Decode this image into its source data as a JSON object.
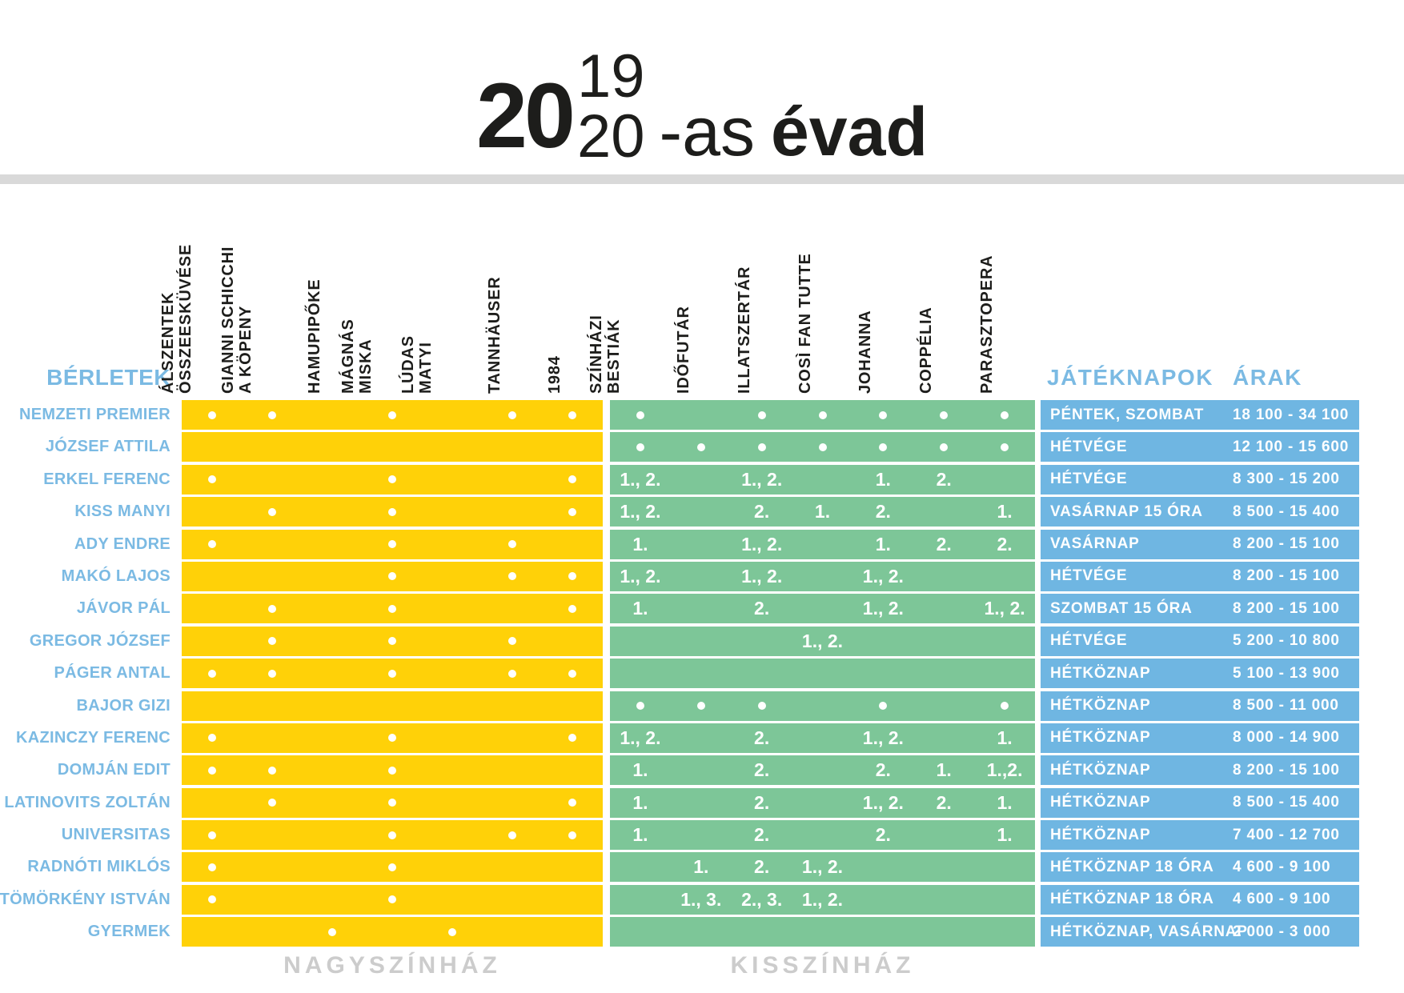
{
  "title": {
    "year_big": "20",
    "year_top": "19",
    "year_bottom": "20",
    "suffix": "-as",
    "season_word": "évad"
  },
  "berletek_label": "BÉRLETEK",
  "jateknapok_label": "JÁTÉKNAPOK",
  "arak_label": "ÁRAK",
  "colors": {
    "nagyszinhaz_yellow": "#FFD108",
    "kisszinhaz_green": "#7DC698",
    "info_blue": "#6FB6E2",
    "label_blue": "#7BBAE3",
    "divider_gray": "#D9D9D9",
    "footer_gray": "#CCCCCC",
    "text_black": "#1D1D1B"
  },
  "venues": {
    "nagyszinhaz": {
      "label": "NAGYSZÍNHÁZ",
      "shows": [
        [
          "ÁLSZENTEK",
          "ÖSSZEESKÜVÉSE"
        ],
        [
          "GIANNI SCHICCHI",
          "A KÖPENY"
        ],
        [
          "HAMUPIPŐKE"
        ],
        [
          "MÁGNÁS",
          "MISKA"
        ],
        [
          "LÚDAS",
          "MATYI"
        ],
        [
          "TANNHÄUSER"
        ],
        [
          "1984"
        ]
      ]
    },
    "kisszinhaz": {
      "label": "KISSZÍNHÁZ",
      "shows": [
        [
          "SZÍNHÁZI",
          "BESTIÁK"
        ],
        [
          "IDŐFUTÁR"
        ],
        [
          "ILLATSZERTÁR"
        ],
        [
          "COSÌ FAN TUTTE"
        ],
        [
          "JOHANNA"
        ],
        [
          "COPPÉLIA"
        ],
        [
          "PARASZTOPERA"
        ]
      ]
    }
  },
  "rows": [
    {
      "label": "NEMZETI PREMIER",
      "nagy": [
        "•",
        "•",
        "",
        "•",
        "",
        "•",
        "•"
      ],
      "kis": [
        "•",
        "",
        "•",
        "•",
        "•",
        "•",
        "•"
      ],
      "days": "PÉNTEK, SZOMBAT",
      "price": "18 100 - 34 100"
    },
    {
      "label": "JÓZSEF ATTILA",
      "nagy": [
        "",
        "",
        "",
        "",
        "",
        "",
        ""
      ],
      "kis": [
        "•",
        "•",
        "•",
        "•",
        "•",
        "•",
        "•"
      ],
      "days": "HÉTVÉGE",
      "price": "12 100 - 15 600"
    },
    {
      "label": "ERKEL  FERENC",
      "nagy": [
        "•",
        "",
        "",
        "•",
        "",
        "",
        "•"
      ],
      "kis": [
        "1., 2.",
        "",
        "1., 2.",
        "",
        "1.",
        "2.",
        ""
      ],
      "days": "HÉTVÉGE",
      "price": "8 300 - 15 200"
    },
    {
      "label": "KISS  MANYI",
      "nagy": [
        "",
        "•",
        "",
        "•",
        "",
        "",
        "•"
      ],
      "kis": [
        "1., 2.",
        "",
        "2.",
        "1.",
        "2.",
        "",
        "1."
      ],
      "days": "VASÁRNAP 15 ÓRA",
      "price": "8 500 - 15 400"
    },
    {
      "label": "ADY ENDRE",
      "nagy": [
        "•",
        "",
        "",
        "•",
        "",
        "•",
        ""
      ],
      "kis": [
        "1.",
        "",
        "1., 2.",
        "",
        "1.",
        "2.",
        "2."
      ],
      "days": "VASÁRNAP",
      "price": "8 200 - 15 100"
    },
    {
      "label": "MAKÓ LAJOS",
      "nagy": [
        "",
        "",
        "",
        "•",
        "",
        "•",
        "•"
      ],
      "kis": [
        "1., 2.",
        "",
        "1., 2.",
        "",
        "1., 2.",
        "",
        ""
      ],
      "days": "HÉTVÉGE",
      "price": "8 200 - 15 100"
    },
    {
      "label": "JÁVOR PÁL",
      "nagy": [
        "",
        "•",
        "",
        "•",
        "",
        "",
        "•"
      ],
      "kis": [
        "1.",
        "",
        "2.",
        "",
        "1., 2.",
        "",
        "1., 2."
      ],
      "days": "SZOMBAT 15 ÓRA",
      "price": "8 200 - 15 100"
    },
    {
      "label": "GREGOR JÓZSEF",
      "nagy": [
        "",
        "•",
        "",
        "•",
        "",
        "•",
        ""
      ],
      "kis": [
        "",
        "",
        "",
        "1., 2.",
        "",
        "",
        ""
      ],
      "days": "HÉTVÉGE",
      "price": "5 200 - 10 800"
    },
    {
      "label": "PÁGER ANTAL",
      "nagy": [
        "•",
        "•",
        "",
        "•",
        "",
        "•",
        "•"
      ],
      "kis": [
        "",
        "",
        "",
        "",
        "",
        "",
        ""
      ],
      "days": "HÉTKÖZNAP",
      "price": "5 100 - 13 900"
    },
    {
      "label": "BAJOR GIZI",
      "nagy": [
        "",
        "",
        "",
        "",
        "",
        "",
        ""
      ],
      "kis": [
        "•",
        "•",
        "•",
        "",
        "•",
        "",
        "•"
      ],
      "days": "HÉTKÖZNAP",
      "price": "8 500 - 11 000"
    },
    {
      "label": "KAZINCZY FERENC",
      "nagy": [
        "•",
        "",
        "",
        "•",
        "",
        "",
        "•"
      ],
      "kis": [
        "1., 2.",
        "",
        "2.",
        "",
        "1., 2.",
        "",
        "1."
      ],
      "days": "HÉTKÖZNAP",
      "price": "8 000 - 14 900"
    },
    {
      "label": "DOMJÁN EDIT",
      "nagy": [
        "•",
        "•",
        "",
        "•",
        "",
        "",
        ""
      ],
      "kis": [
        "1.",
        "",
        "2.",
        "",
        "2.",
        "1.",
        "1.,2."
      ],
      "days": "HÉTKÖZNAP",
      "price": "8 200 - 15 100"
    },
    {
      "label": "LATINOVITS ZOLTÁN",
      "nagy": [
        "",
        "•",
        "",
        "•",
        "",
        "",
        "•"
      ],
      "kis": [
        "1.",
        "",
        "2.",
        "",
        "1., 2.",
        "2.",
        "1."
      ],
      "days": "HÉTKÖZNAP",
      "price": "8 500 - 15 400"
    },
    {
      "label": "UNIVERSITAS",
      "nagy": [
        "•",
        "",
        "",
        "•",
        "",
        "•",
        "•"
      ],
      "kis": [
        "1.",
        "",
        "2.",
        "",
        "2.",
        "",
        "1."
      ],
      "days": "HÉTKÖZNAP",
      "price": "7 400 - 12 700"
    },
    {
      "label": "RADNÓTI MIKLÓS",
      "nagy": [
        "•",
        "",
        "",
        "•",
        "",
        "",
        ""
      ],
      "kis": [
        "",
        "1.",
        "2.",
        "1., 2.",
        "",
        "",
        ""
      ],
      "days": "HÉTKÖZNAP 18 ÓRA",
      "price": "4 600 - 9 100"
    },
    {
      "label": "TÖMÖRKÉNY ISTVÁN",
      "nagy": [
        "•",
        "",
        "",
        "•",
        "",
        "",
        ""
      ],
      "kis": [
        "",
        "1., 3.",
        "2., 3.",
        "1., 2.",
        "",
        "",
        ""
      ],
      "days": "HÉTKÖZNAP 18 ÓRA",
      "price": "4 600 - 9 100"
    },
    {
      "label": "GYERMEK",
      "nagy": [
        "",
        "",
        "•",
        "",
        "•",
        "",
        ""
      ],
      "kis": [
        "",
        "",
        "",
        "",
        "",
        "",
        ""
      ],
      "days": "HÉTKÖZNAP, VASÁRNAP",
      "price": "2 000 - 3 000"
    }
  ]
}
